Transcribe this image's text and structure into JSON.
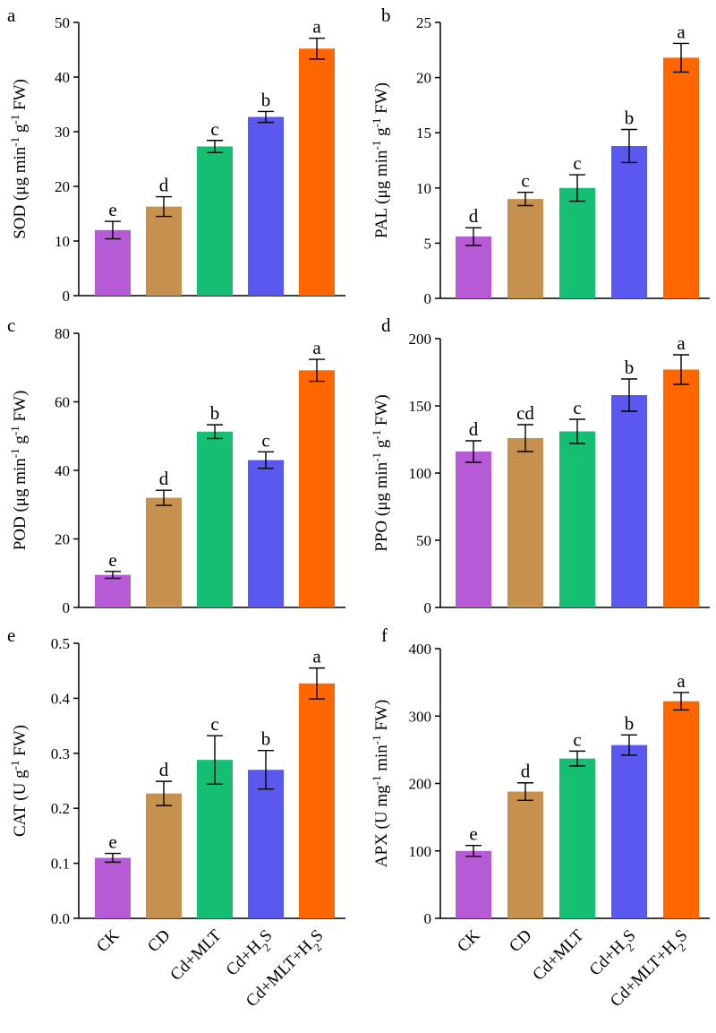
{
  "categories": [
    "CK",
    "CD",
    "Cd+MLT",
    "Cd+H2S",
    "Cd+MLT+H2S"
  ],
  "category_labels": [
    {
      "main": "CK",
      "sub": "",
      "tail": ""
    },
    {
      "main": "CD",
      "sub": "",
      "tail": ""
    },
    {
      "main": "Cd+MLT",
      "sub": "",
      "tail": ""
    },
    {
      "main": "Cd+H",
      "sub": "2",
      "tail": "S"
    },
    {
      "main": "Cd+MLT+H",
      "sub": "2",
      "tail": "S"
    }
  ],
  "colors": [
    "#B65AD6",
    "#C6914F",
    "#16BE73",
    "#5A58EE",
    "#FF6600"
  ],
  "chart_data": [
    {
      "id": "a",
      "type": "bar",
      "panel": "a",
      "ylabel": "SOD (μg min-1 g-1 FW)",
      "ylabel_parts": [
        [
          "SOD (μg min",
          ""
        ],
        [
          "-1",
          "sup"
        ],
        [
          " g",
          ""
        ],
        [
          "-1",
          "sup"
        ],
        [
          " FW)",
          ""
        ]
      ],
      "ylim": [
        0,
        50
      ],
      "yticks": [
        0,
        10,
        20,
        30,
        40,
        50
      ],
      "ytick_labels": [
        "0",
        "10",
        "20",
        "30",
        "40",
        "50"
      ],
      "values": [
        12,
        16.3,
        27.3,
        32.7,
        45.2
      ],
      "errors": [
        1.6,
        1.8,
        1.1,
        1.0,
        1.9
      ],
      "letters": [
        "e",
        "d",
        "c",
        "b",
        "a"
      ]
    },
    {
      "id": "b",
      "type": "bar",
      "panel": "b",
      "ylabel": "PAL (μg min-1 g-1 FW)",
      "ylabel_parts": [
        [
          "PAL (μg min",
          ""
        ],
        [
          "-1",
          "sup"
        ],
        [
          " g",
          ""
        ],
        [
          "-1",
          "sup"
        ],
        [
          " FW)",
          ""
        ]
      ],
      "ylim": [
        0,
        25
      ],
      "yticks": [
        0,
        5,
        10,
        15,
        20,
        25
      ],
      "ytick_labels": [
        "0",
        "5",
        "10",
        "15",
        "20",
        "25"
      ],
      "values": [
        5.6,
        9,
        10,
        13.8,
        21.8
      ],
      "errors": [
        0.8,
        0.6,
        1.2,
        1.5,
        1.3
      ],
      "letters": [
        "d",
        "c",
        "c",
        "b",
        "a"
      ]
    },
    {
      "id": "c",
      "type": "bar",
      "panel": "c",
      "ylabel": "POD (μg min-1 g-1 FW)",
      "ylabel_parts": [
        [
          "POD (μg min",
          ""
        ],
        [
          "-1",
          "sup"
        ],
        [
          " g",
          ""
        ],
        [
          "-1",
          "sup"
        ],
        [
          " FW)",
          ""
        ]
      ],
      "ylim": [
        0,
        80
      ],
      "yticks": [
        0,
        20,
        40,
        60,
        80
      ],
      "ytick_labels": [
        "0",
        "20",
        "40",
        "60",
        "80"
      ],
      "values": [
        9.5,
        32,
        51.3,
        43,
        69.2
      ],
      "errors": [
        1.0,
        2.2,
        2.0,
        2.4,
        3.2
      ],
      "letters": [
        "e",
        "d",
        "b",
        "c",
        "a"
      ]
    },
    {
      "id": "d",
      "type": "bar",
      "panel": "d",
      "ylabel": "PPO (μg min-1 g-1 FW)",
      "ylabel_parts": [
        [
          "PPO (μg min",
          ""
        ],
        [
          "-1",
          "sup"
        ],
        [
          " g",
          ""
        ],
        [
          "-1",
          "sup"
        ],
        [
          " FW)",
          ""
        ]
      ],
      "ylim": [
        0,
        200
      ],
      "yticks": [
        0,
        50,
        100,
        150,
        200
      ],
      "ytick_labels": [
        "0",
        "50",
        "100",
        "150",
        "200"
      ],
      "values": [
        116,
        126,
        131,
        158,
        177
      ],
      "errors": [
        8,
        10,
        9,
        12,
        11
      ],
      "letters": [
        "d",
        "cd",
        "c",
        "b",
        "a"
      ]
    },
    {
      "id": "e",
      "type": "bar",
      "panel": "e",
      "ylabel": "CAT (U g-1 FW)",
      "ylabel_parts": [
        [
          "CAT (U g",
          ""
        ],
        [
          "-1",
          "sup"
        ],
        [
          " FW)",
          ""
        ]
      ],
      "ylim": [
        0,
        0.5
      ],
      "yticks": [
        0,
        0.1,
        0.2,
        0.3,
        0.4,
        0.5
      ],
      "ytick_labels": [
        "0.0",
        "0.1",
        "0.2",
        "0.3",
        "0.4",
        "0.5"
      ],
      "values": [
        0.11,
        0.227,
        0.288,
        0.27,
        0.427
      ],
      "errors": [
        0.008,
        0.022,
        0.044,
        0.035,
        0.028
      ],
      "letters": [
        "e",
        "d",
        "c",
        "b",
        "a"
      ]
    },
    {
      "id": "f",
      "type": "bar",
      "panel": "f",
      "ylabel": "APX (U mg-1 min-1 FW)",
      "ylabel_parts": [
        [
          "APX (U mg",
          ""
        ],
        [
          "-1",
          "sup"
        ],
        [
          " min",
          ""
        ],
        [
          "-1",
          "sup"
        ],
        [
          " FW)",
          ""
        ]
      ],
      "ylim": [
        0,
        400
      ],
      "yticks": [
        0,
        100,
        200,
        300,
        400
      ],
      "ytick_labels": [
        "0",
        "100",
        "200",
        "300",
        "400"
      ],
      "values": [
        100,
        188,
        237,
        257,
        322
      ],
      "errors": [
        8,
        13,
        11,
        15,
        13
      ],
      "letters": [
        "e",
        "d",
        "c",
        "b",
        "a"
      ]
    }
  ]
}
